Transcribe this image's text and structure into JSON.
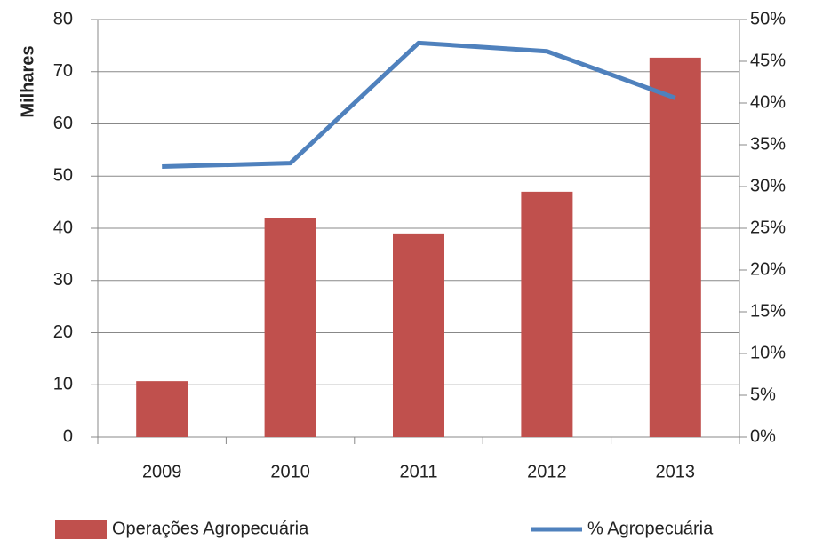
{
  "chart_data": {
    "type": "bar_line",
    "ylabel": "Milhares",
    "categories": [
      "2009",
      "2010",
      "2011",
      "2012",
      "2013"
    ],
    "series": [
      {
        "name": "Operações Agropecuária",
        "color": "#c0504d",
        "type": "bar",
        "values": [
          10.7,
          42.0,
          39.0,
          47.0,
          72.7
        ]
      },
      {
        "name": "% Agropecuária",
        "color": "#4f81bd",
        "type": "line",
        "axis": "y2",
        "values": [
          32.4,
          32.8,
          47.2,
          46.2,
          40.6
        ]
      }
    ],
    "ylim": [
      0,
      80
    ],
    "yticks": [
      0,
      10,
      20,
      30,
      40,
      50,
      60,
      70,
      80
    ],
    "y2lim": [
      0,
      50
    ],
    "y2ticks": [
      {
        "value": 0,
        "label": "0%"
      },
      {
        "value": 5,
        "label": "5%"
      },
      {
        "value": 10,
        "label": "10%"
      },
      {
        "value": 15,
        "label": "15%"
      },
      {
        "value": 20,
        "label": "20%"
      },
      {
        "value": 25,
        "label": "25%"
      },
      {
        "value": 30,
        "label": "30%"
      },
      {
        "value": 35,
        "label": "35%"
      },
      {
        "value": 40,
        "label": "40%"
      },
      {
        "value": 45,
        "label": "45%"
      },
      {
        "value": 50,
        "label": "50%"
      }
    ],
    "grid": true,
    "legend": "bottom"
  }
}
